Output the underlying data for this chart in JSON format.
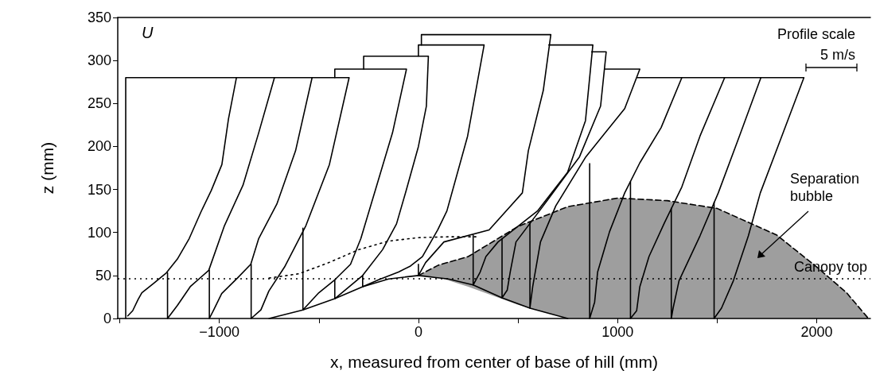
{
  "chart_data": {
    "type": "line",
    "xlabel": "x, measured from center of base of hill (mm)",
    "ylabel": "z (mm)",
    "xlim": [
      -1510,
      2270
    ],
    "ylim": [
      0,
      350
    ],
    "xticks": [
      {
        "value": -1500,
        "label": null
      },
      {
        "value": -1000,
        "label": "−1000"
      },
      {
        "value": -500,
        "label": null
      },
      0,
      {
        "value": 500,
        "label": null
      },
      1000,
      {
        "value": 1500,
        "label": null
      },
      2000
    ],
    "yticks": [
      0,
      50,
      100,
      150,
      200,
      250,
      300,
      350
    ],
    "grid": false,
    "marker": "none",
    "line_style": "solid",
    "annotations": [
      "U",
      "Profile scale",
      "5 m/s",
      "Separation bubble"
    ],
    "ref_lines": [
      {
        "axis": "y",
        "value": 46,
        "label": "Canopy top",
        "line_style": "dotted",
        "color": "#000000"
      }
    ],
    "series": [
      {
        "color": "#000000",
        "x": [
          -750,
          -600,
          -450,
          -300,
          -150,
          0,
          150,
          300
        ],
        "values": [
          47,
          52,
          65,
          80,
          90,
          94,
          95,
          95
        ],
        "line_style": "dotted"
      },
      {
        "color": "#000000",
        "x": [
          -1470,
          -1470,
          -914,
          -954,
          -987,
          -1040,
          -1092,
          -1151,
          -1211,
          -1266,
          -1329,
          -1389,
          -1408,
          -1435,
          -1460
        ],
        "values": [
          0,
          280,
          280,
          232,
          179,
          149,
          124,
          93,
          69,
          53,
          41,
          30,
          22,
          9,
          3
        ]
      },
      {
        "color": "#000000",
        "x": [
          -914,
          -723,
          -802,
          -881,
          -974,
          -1053,
          -1146,
          -1211,
          -1260,
          -1260
        ],
        "values": [
          280,
          280,
          216,
          155,
          108,
          56,
          37,
          15,
          0,
          53
        ]
      },
      {
        "color": "#000000",
        "x": [
          -723,
          -534,
          -617,
          -711,
          -802,
          -842,
          -909,
          -988,
          -1028,
          -1050,
          -1050
        ],
        "values": [
          280,
          280,
          195,
          133,
          93,
          63,
          47,
          29,
          10,
          0,
          56
        ]
      },
      {
        "color": "#000000",
        "x": [
          -534,
          -348,
          -447,
          -565,
          -672,
          -751,
          -791,
          -840,
          -840
        ],
        "values": [
          280,
          280,
          179,
          108,
          60,
          32,
          10,
          0,
          63
        ]
      },
      {
        "color": "#000000",
        "x": [
          -420,
          -420,
          -60,
          -130,
          -209,
          -289,
          -341,
          -420,
          -500,
          -580,
          -580
        ],
        "values": [
          280,
          290,
          290,
          216,
          155,
          93,
          63,
          45,
          30,
          10,
          105
        ]
      },
      {
        "color": "#000000",
        "x": [
          -275,
          -275,
          50,
          40,
          0,
          -60,
          -110,
          -180,
          -280,
          -420,
          -420
        ],
        "values": [
          290,
          305,
          305,
          247,
          200,
          150,
          110,
          80,
          50,
          23,
          45
        ]
      },
      {
        "color": "#000000",
        "x": [
          0,
          0,
          330,
          247,
          143,
          97,
          20,
          -40,
          -100,
          -200,
          -280,
          -280
        ],
        "values": [
          305,
          318,
          318,
          212,
          125,
          103,
          72,
          61,
          54,
          45,
          37,
          50
        ]
      },
      {
        "color": "#000000",
        "x": [
          15,
          15,
          665,
          627,
          552,
          522,
          355,
          128,
          36,
          0,
          0
        ],
        "values": [
          318,
          330,
          330,
          265,
          195,
          146,
          103,
          89,
          65,
          50,
          63
        ]
      },
      {
        "color": "#000000",
        "x": [
          655,
          876,
          839,
          749,
          598,
          400,
          339,
          310,
          275,
          275
        ],
        "values": [
          318,
          318,
          230,
          170,
          125,
          89,
          72,
          54,
          39,
          97
        ]
      },
      {
        "color": "#000000",
        "x": [
          870,
          943,
          915,
          809,
          627,
          490,
          461,
          446,
          420,
          420
        ],
        "values": [
          310,
          310,
          247,
          188,
          131,
          89,
          54,
          33,
          24,
          93
        ]
      },
      {
        "color": "#000000",
        "x": [
          935,
          1112,
          1036,
          841,
          690,
          613,
          574,
          560,
          560
        ],
        "values": [
          290,
          290,
          244,
          188,
          131,
          89,
          37,
          12,
          111
        ]
      },
      {
        "color": "#000000",
        "x": [
          1100,
          1323,
          1219,
          1112,
          1036,
          960,
          900,
          885,
          860,
          860
        ],
        "values": [
          280,
          280,
          222,
          181,
          146,
          101,
          54,
          19,
          0,
          180
        ]
      },
      {
        "color": "#000000",
        "x": [
          1323,
          1538,
          1414,
          1323,
          1235,
          1158,
          1112,
          1096,
          1065,
          1065
        ],
        "values": [
          280,
          280,
          212,
          153,
          111,
          72,
          37,
          9,
          0,
          159
        ]
      },
      {
        "color": "#000000",
        "x": [
          1538,
          1720,
          1612,
          1506,
          1414,
          1309,
          1279,
          1270,
          1270
        ],
        "values": [
          280,
          280,
          212,
          146,
          96,
          44,
          12,
          0,
          128
        ]
      },
      {
        "color": "#000000",
        "x": [
          1720,
          1936,
          1825,
          1717,
          1657,
          1582,
          1522,
          1485,
          1485
        ],
        "values": [
          280,
          280,
          212,
          146,
          96,
          44,
          12,
          0,
          135
        ]
      },
      {
        "color": "#000000",
        "x": [
          0,
          100,
          250,
          500,
          750,
          1000,
          1250,
          1500,
          1800,
          2000,
          2150,
          2260
        ],
        "values": [
          50,
          62,
          72,
          107,
          130,
          140,
          137,
          128,
          97,
          60,
          30,
          0
        ],
        "line_style": "dashed",
        "lower": [
          50,
          48,
          37,
          16,
          0,
          0,
          0,
          0,
          0,
          0,
          0,
          0
        ],
        "upper": [
          50,
          62,
          72,
          107,
          130,
          140,
          137,
          128,
          97,
          60,
          30,
          0
        ]
      },
      {
        "color": "#000000",
        "x": [
          -750,
          -580,
          -420,
          -280,
          -150,
          0,
          150,
          275,
          420,
          560,
          750
        ],
        "values": [
          0,
          10,
          23,
          37,
          46,
          50,
          46,
          39,
          24,
          12,
          0
        ]
      }
    ]
  }
}
